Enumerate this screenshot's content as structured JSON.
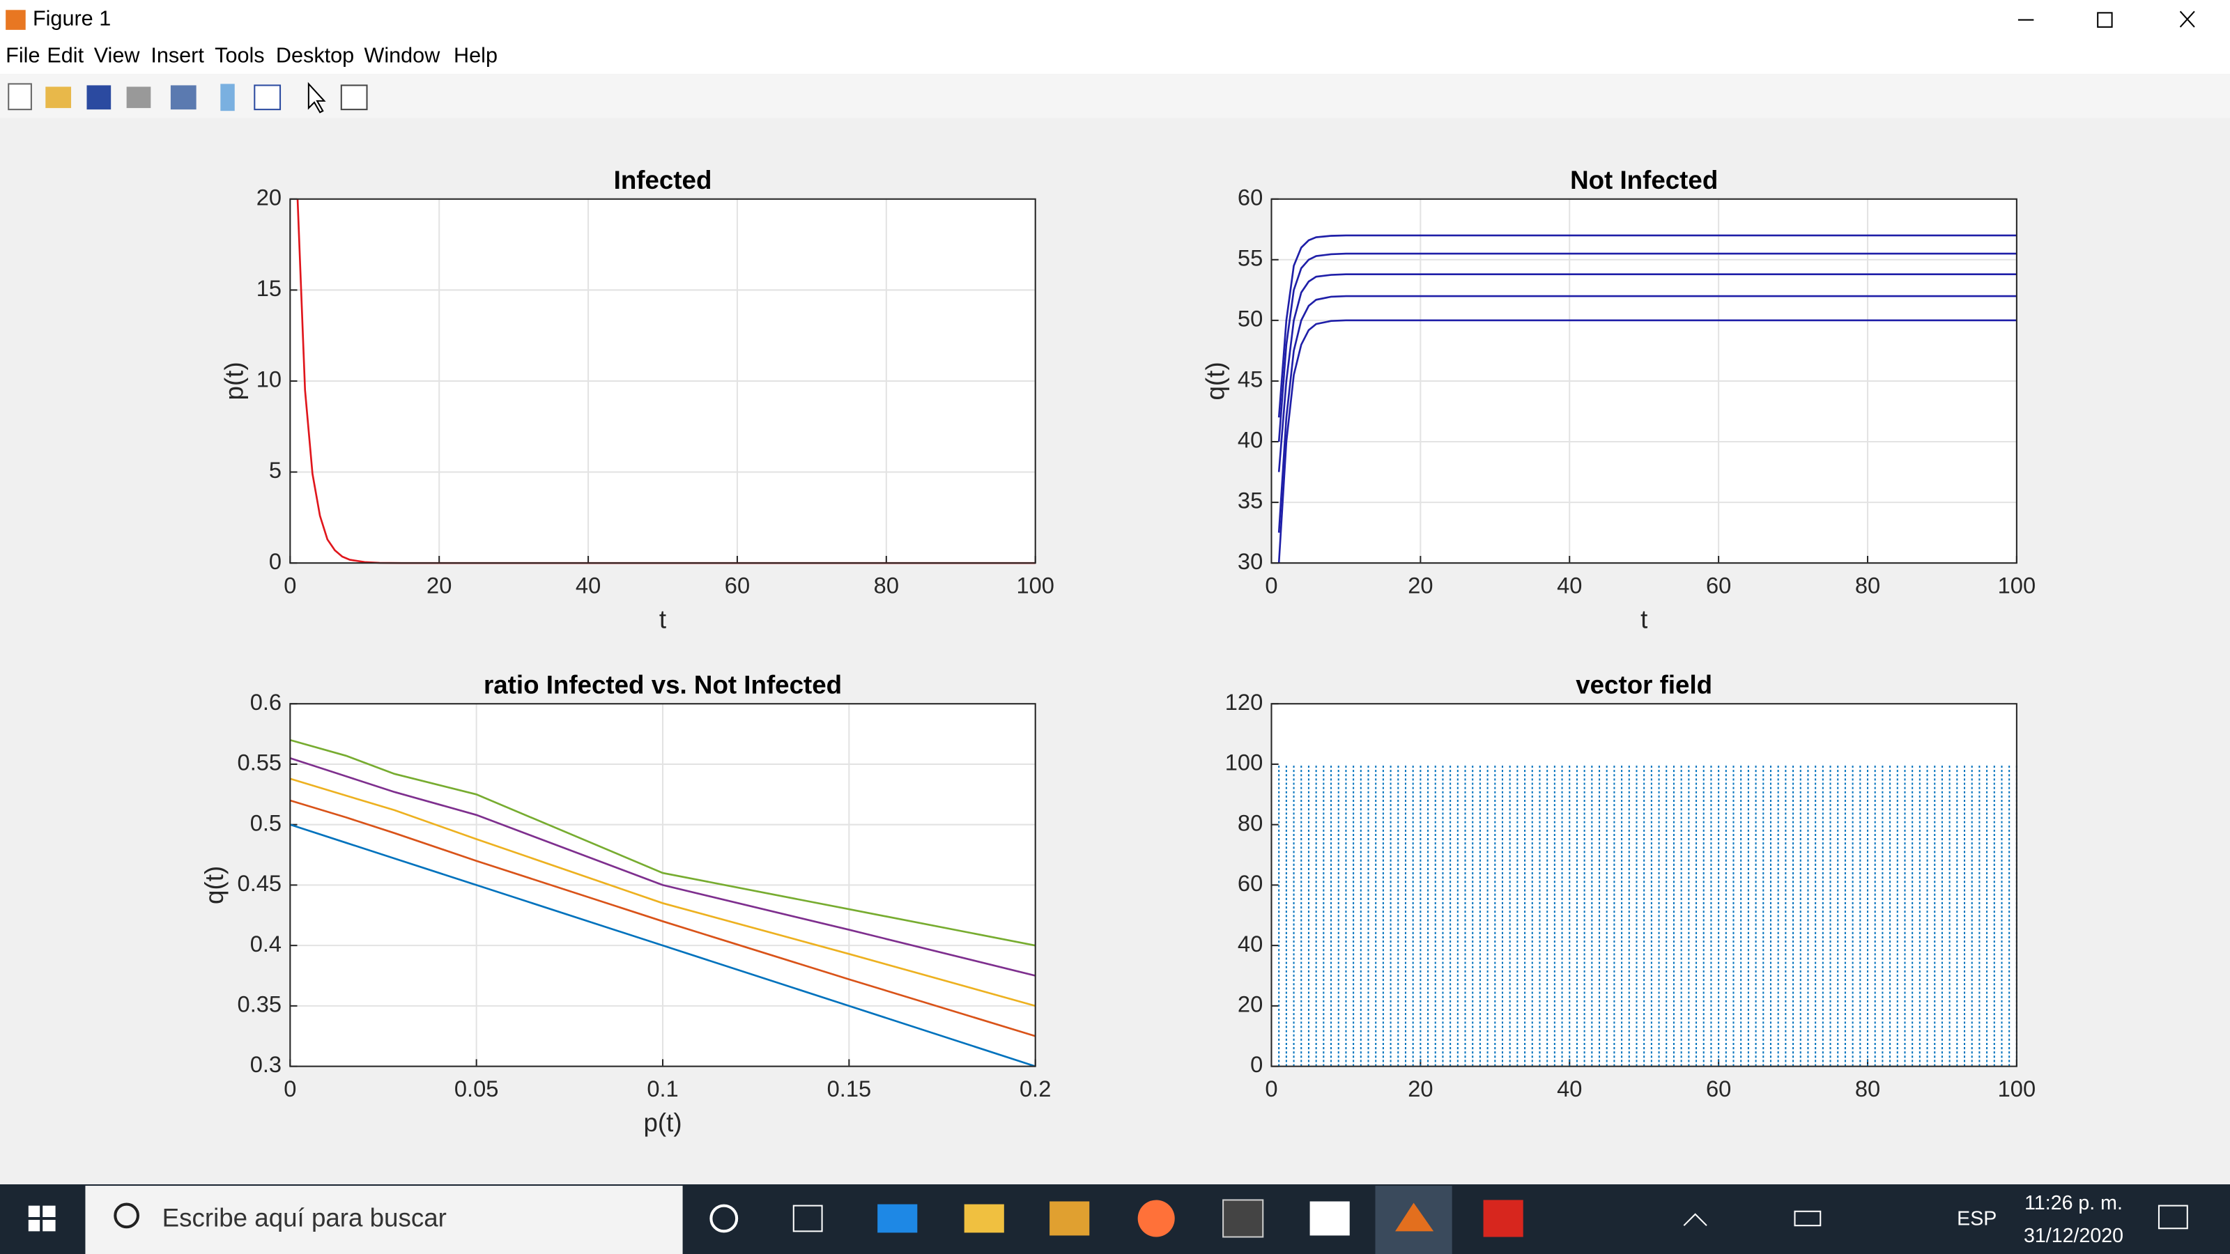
{
  "window": {
    "title": "Figure 1"
  },
  "menu": [
    "File",
    "Edit",
    "View",
    "Insert",
    "Tools",
    "Desktop",
    "Window",
    "Help"
  ],
  "taskbar": {
    "search": "Escribe aquí para buscar",
    "language": "ESP",
    "time": "11:26 p. m.",
    "date": "31/12/2020"
  },
  "chart_data": [
    {
      "type": "line",
      "title": "Infected",
      "x_label": "t",
      "y_label": "p(t)",
      "grid": true,
      "x": [
        1,
        2,
        3,
        4,
        5,
        6,
        7,
        8,
        10,
        12,
        15,
        20,
        30,
        50,
        100
      ],
      "values": [
        20,
        9.5,
        4.9,
        2.6,
        1.3,
        0.7,
        0.35,
        0.18,
        0.05,
        0.01,
        0,
        0,
        0,
        0,
        0
      ],
      "color": "#e0161c",
      "xlim": [
        0,
        100
      ],
      "xticks": [
        0,
        20,
        40,
        60,
        80,
        100
      ],
      "ylim": [
        0,
        20
      ],
      "yticks": [
        0,
        5,
        10,
        15,
        20
      ]
    },
    {
      "type": "line",
      "title": "Not Infected",
      "x_label": "t",
      "y_label": "q(t)",
      "grid": true,
      "x": [
        1,
        2,
        3,
        4,
        5,
        6,
        8,
        10,
        15,
        100
      ],
      "series": [
        {
          "color": "#1f1fa8",
          "values": [
            30,
            40,
            45.5,
            48,
            49.2,
            49.7,
            49.95,
            50,
            50,
            50
          ]
        },
        {
          "color": "#1f1fa8",
          "values": [
            32.5,
            42,
            47.5,
            50,
            51.2,
            51.7,
            51.95,
            52,
            52,
            52
          ]
        },
        {
          "color": "#1f1fa8",
          "values": [
            37.5,
            45,
            50,
            52.3,
            53.2,
            53.6,
            53.75,
            53.8,
            53.8,
            53.8
          ]
        },
        {
          "color": "#1f1fa8",
          "values": [
            40,
            48,
            52.5,
            54.3,
            55,
            55.3,
            55.45,
            55.5,
            55.5,
            55.5
          ]
        },
        {
          "color": "#1f1fa8",
          "values": [
            42,
            50,
            54.5,
            56,
            56.6,
            56.85,
            56.97,
            57,
            57,
            57
          ]
        }
      ],
      "xlim": [
        0,
        100
      ],
      "xticks": [
        0,
        20,
        40,
        60,
        80,
        100
      ],
      "ylim": [
        30,
        60
      ],
      "yticks": [
        30,
        35,
        40,
        45,
        50,
        55,
        60
      ]
    },
    {
      "type": "line",
      "title": "ratio Infected vs. Not Infected",
      "x_label": "p(t)",
      "y_label": "q(t)",
      "grid": true,
      "x": [
        0,
        0.015,
        0.028,
        0.05,
        0.1,
        0.15,
        0.2
      ],
      "series": [
        {
          "color": "#0072bd",
          "values": [
            0.5,
            0.485,
            0.472,
            0.45,
            0.4,
            0.35,
            0.3
          ]
        },
        {
          "color": "#d95319",
          "values": [
            0.52,
            0.506,
            0.493,
            0.47,
            0.42,
            0.372,
            0.325
          ]
        },
        {
          "color": "#edb120",
          "values": [
            0.538,
            0.524,
            0.512,
            0.488,
            0.435,
            0.393,
            0.35
          ]
        },
        {
          "color": "#7e2f8e",
          "values": [
            0.555,
            0.54,
            0.527,
            0.508,
            0.45,
            0.413,
            0.375
          ]
        },
        {
          "color": "#77ac30",
          "values": [
            0.57,
            0.557,
            0.542,
            0.525,
            0.46,
            0.43,
            0.4
          ]
        }
      ],
      "xlim": [
        0,
        0.2
      ],
      "xticks": [
        0,
        0.05,
        0.1,
        0.15,
        0.2
      ],
      "ylim": [
        0.3,
        0.6
      ],
      "yticks": [
        0.3,
        0.35,
        0.4,
        0.45,
        0.5,
        0.55,
        0.6
      ]
    },
    {
      "type": "vector",
      "title": "vector field",
      "grid": false,
      "color": "#0072bd",
      "x": [
        0,
        1,
        2,
        3,
        4,
        5,
        6,
        7,
        8,
        9,
        10,
        11,
        12,
        13,
        14,
        15,
        16,
        17,
        18,
        19,
        20,
        21,
        22,
        23,
        24,
        25,
        26,
        27,
        28,
        29,
        30,
        31,
        32,
        33,
        34,
        35,
        36,
        37,
        38,
        39,
        40,
        41,
        42,
        43,
        44,
        45,
        46,
        47,
        48,
        49,
        50,
        51,
        52,
        53,
        54,
        55,
        56,
        57,
        58,
        59,
        60,
        61,
        62,
        63,
        64,
        65,
        66,
        67,
        68,
        69,
        70,
        71,
        72,
        73,
        74,
        75,
        76,
        77,
        78,
        79,
        80,
        81,
        82,
        83,
        84,
        85,
        86,
        87,
        88,
        89,
        90,
        91,
        92,
        93,
        94,
        95,
        96,
        97,
        98,
        99,
        100
      ],
      "values": [
        100,
        100,
        100,
        100,
        100,
        100,
        100,
        100,
        100,
        100,
        100,
        100,
        100,
        100,
        100,
        100,
        100,
        100,
        100,
        100,
        100,
        100,
        100,
        100,
        100,
        100,
        100,
        100,
        100,
        100,
        100,
        100,
        100,
        100,
        100,
        100,
        100,
        100,
        100,
        100,
        100,
        100,
        100,
        100,
        100,
        100,
        100,
        100,
        100,
        100,
        100,
        100,
        100,
        100,
        100,
        100,
        100,
        100,
        100,
        100,
        100,
        100,
        100,
        100,
        100,
        100,
        100,
        100,
        100,
        100,
        100,
        100,
        100,
        100,
        100,
        100,
        100,
        100,
        100,
        100,
        100,
        100,
        100,
        100,
        100,
        100,
        100,
        100,
        100,
        100,
        100,
        100,
        100,
        100,
        100,
        100,
        100,
        100,
        100,
        100,
        100
      ],
      "xlim": [
        0,
        100
      ],
      "xticks": [
        0,
        20,
        40,
        60,
        80,
        100
      ],
      "ylim": [
        0,
        120
      ],
      "yticks": [
        0,
        20,
        40,
        60,
        80,
        100,
        120
      ]
    }
  ]
}
